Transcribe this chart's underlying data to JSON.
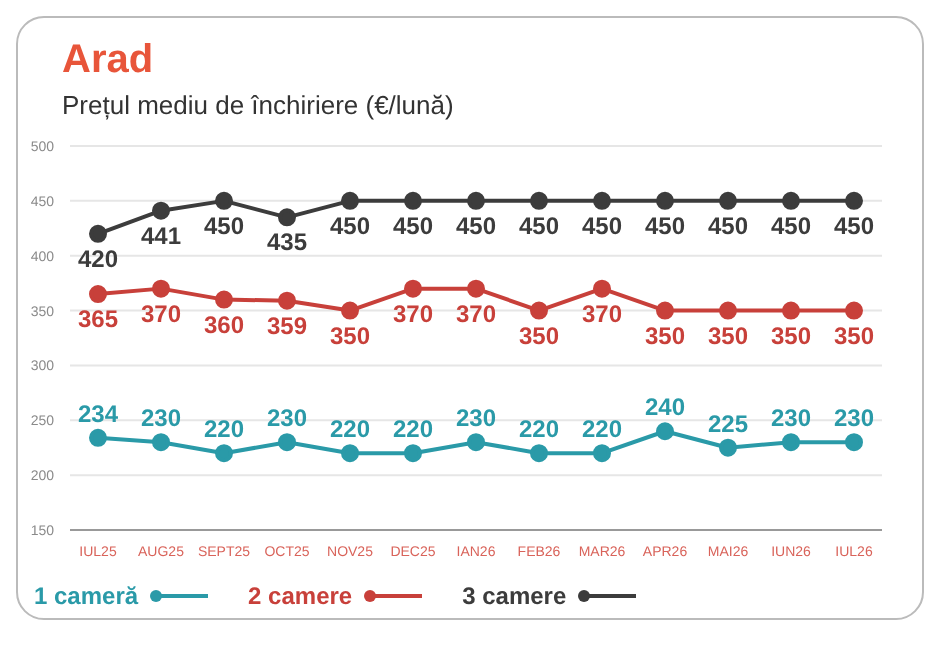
{
  "chart_data": {
    "type": "line",
    "title": "Arad",
    "subtitle": "Prețul mediu de închiriere (€/lună)",
    "categories": [
      "IUL25",
      "AUG25",
      "SEPT25",
      "OCT25",
      "NOV25",
      "DEC25",
      "IAN26",
      "FEB26",
      "MAR26",
      "APR26",
      "MAI26",
      "IUN26",
      "IUL26"
    ],
    "series": [
      {
        "name": "1 cameră",
        "color": "#2a9aa8",
        "values": [
          234,
          230,
          220,
          230,
          220,
          220,
          230,
          220,
          220,
          240,
          225,
          230,
          230
        ]
      },
      {
        "name": "2 camere",
        "color": "#c8403a",
        "values": [
          365,
          370,
          360,
          359,
          350,
          370,
          370,
          350,
          370,
          350,
          350,
          350,
          350
        ]
      },
      {
        "name": "3 camere",
        "color": "#3c3c3c",
        "values": [
          420,
          441,
          450,
          435,
          450,
          450,
          450,
          450,
          450,
          450,
          450,
          450,
          450
        ]
      }
    ],
    "ylim": [
      150,
      500
    ],
    "yticks": [
      150,
      200,
      250,
      300,
      350,
      400,
      450,
      500
    ],
    "grid": "y",
    "legend": "bottom left",
    "marker": "circle",
    "line_style": "solid",
    "data_labels": true
  }
}
